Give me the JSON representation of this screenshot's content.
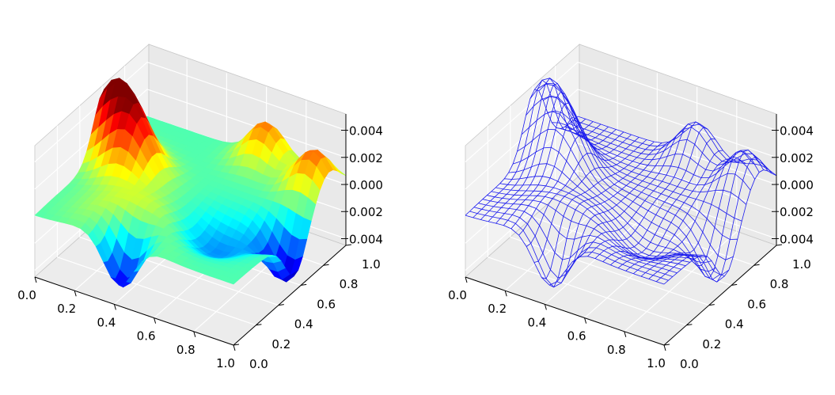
{
  "chart_data": [
    {
      "type": "surface",
      "style": "filled surface, jet colormap",
      "colormap": "jet",
      "x_ticks": [
        "0.0",
        "0.2",
        "0.4",
        "0.6",
        "0.8",
        "1.0"
      ],
      "y_ticks": [
        "0.0",
        "0.2",
        "0.4",
        "0.6",
        "0.8",
        "1.0"
      ],
      "z_ticks": [
        "0.004",
        "0.002",
        "0.000",
        "0.002",
        "0.004"
      ],
      "xlim": [
        0,
        1
      ],
      "ylim": [
        0,
        1
      ],
      "zlim": [
        -0.0045,
        0.0052
      ],
      "z_extrema": {
        "max": 0.0052,
        "min": -0.0043
      },
      "grid": true
    },
    {
      "type": "wireframe",
      "style": "wireframe",
      "line_color": "#1a1aee",
      "x_ticks": [
        "0.0",
        "0.2",
        "0.4",
        "0.6",
        "0.8",
        "1.0"
      ],
      "y_ticks": [
        "0.0",
        "0.2",
        "0.4",
        "0.6",
        "0.8",
        "1.0"
      ],
      "z_ticks": [
        "0.004",
        "0.002",
        "0.000",
        "0.002",
        "0.004"
      ],
      "xlim": [
        0,
        1
      ],
      "ylim": [
        0,
        1
      ],
      "zlim": [
        -0.0045,
        0.0052
      ],
      "grid": true
    }
  ]
}
